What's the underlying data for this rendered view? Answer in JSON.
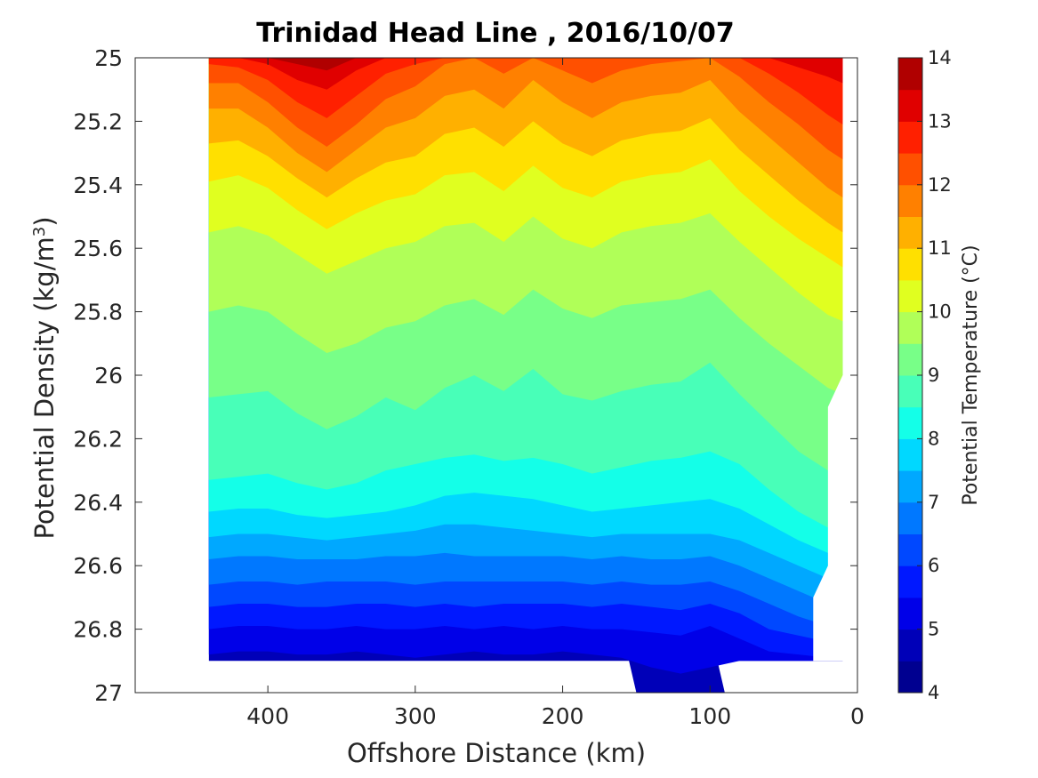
{
  "chart_data": {
    "type": "contour",
    "title": "Trinidad Head Line , 2016/10/07",
    "xlabel": "Offshore Distance (km)",
    "ylabel": "Potential Density (kg/m³)",
    "ylabel_parts": {
      "main": "Potential Density (kg/m",
      "sup": "3",
      "end": ")"
    },
    "colorbar_label": "Potential Temperature (°C)",
    "x_reversed": true,
    "y_reversed": true,
    "xlim": [
      490,
      0
    ],
    "ylim": [
      25,
      27
    ],
    "x_ticks": [
      400,
      300,
      200,
      100,
      0
    ],
    "y_ticks": [
      25,
      25.2,
      25.4,
      25.6,
      25.8,
      26,
      26.2,
      26.4,
      26.6,
      26.8,
      27
    ],
    "colorbar_ticks": [
      4,
      5,
      6,
      7,
      8,
      9,
      10,
      11,
      12,
      13,
      14
    ],
    "colorbar_range": [
      4,
      14
    ],
    "contour_levels": [
      4,
      4.5,
      5,
      5.5,
      6,
      6.5,
      7,
      7.5,
      8,
      8.5,
      9,
      9.5,
      10,
      10.5,
      11,
      11.5,
      12,
      12.5,
      13,
      13.5,
      14
    ],
    "colormap": "jet",
    "colorbar_colors": [
      "#000090",
      "#0000b8",
      "#0000e8",
      "#0018ff",
      "#0048ff",
      "#0078ff",
      "#00a8ff",
      "#00d8ff",
      "#14ffe8",
      "#48ffb8",
      "#78ff88",
      "#b0ff58",
      "#e0ff20",
      "#ffe000",
      "#ffb000",
      "#ff8000",
      "#ff5000",
      "#ff2000",
      "#e00000",
      "#b00000"
    ],
    "data_extent": {
      "x_range_km": [
        440,
        10
      ],
      "density_bottom": 26.9,
      "deep_pocket_x_km": [
        150,
        90
      ],
      "deep_pocket_density": 27
    },
    "isotherms": {
      "x_km": [
        440,
        420,
        400,
        380,
        360,
        340,
        320,
        300,
        280,
        260,
        240,
        220,
        200,
        180,
        160,
        140,
        120,
        100,
        80,
        60,
        40,
        20,
        10
      ],
      "levels": [
        {
          "t": 5,
          "y": [
            26.88,
            26.87,
            26.87,
            26.88,
            26.88,
            26.87,
            26.88,
            26.89,
            26.88,
            26.87,
            26.88,
            26.88,
            26.87,
            26.88,
            26.89,
            26.92,
            26.94,
            26.92,
            26.9,
            26.9,
            26.9,
            26.9,
            26.9
          ]
        },
        {
          "t": 5.5,
          "y": [
            26.8,
            26.79,
            26.79,
            26.8,
            26.8,
            26.79,
            26.8,
            26.8,
            26.79,
            26.8,
            26.79,
            26.8,
            26.79,
            26.8,
            26.8,
            26.81,
            26.82,
            26.79,
            26.83,
            26.87,
            26.88,
            26.89,
            26.89
          ]
        },
        {
          "t": 6,
          "y": [
            26.73,
            26.72,
            26.72,
            26.73,
            26.73,
            26.72,
            26.72,
            26.73,
            26.72,
            26.73,
            26.72,
            26.72,
            26.72,
            26.73,
            26.72,
            26.73,
            26.74,
            26.72,
            26.75,
            26.8,
            26.82,
            26.84,
            26.85
          ]
        },
        {
          "t": 6.5,
          "y": [
            26.66,
            26.65,
            26.65,
            26.66,
            26.65,
            26.65,
            26.65,
            26.66,
            26.65,
            26.65,
            26.65,
            26.65,
            26.65,
            26.66,
            26.65,
            26.66,
            26.66,
            26.65,
            26.68,
            26.72,
            26.76,
            26.79,
            26.8
          ]
        },
        {
          "t": 7,
          "y": [
            26.58,
            26.57,
            26.57,
            26.58,
            26.58,
            26.58,
            26.57,
            26.57,
            26.56,
            26.57,
            26.57,
            26.57,
            26.57,
            26.58,
            26.57,
            26.58,
            26.58,
            26.57,
            26.6,
            26.64,
            26.68,
            26.72,
            26.74
          ]
        },
        {
          "t": 7.5,
          "y": [
            26.51,
            26.5,
            26.5,
            26.51,
            26.52,
            26.51,
            26.5,
            26.49,
            26.47,
            26.47,
            26.48,
            26.49,
            26.5,
            26.51,
            26.5,
            26.5,
            26.5,
            26.5,
            26.52,
            26.56,
            26.6,
            26.64,
            26.66
          ]
        },
        {
          "t": 8,
          "y": [
            26.43,
            26.42,
            26.42,
            26.44,
            26.45,
            26.44,
            26.43,
            26.41,
            26.38,
            26.37,
            26.38,
            26.39,
            26.41,
            26.43,
            26.42,
            26.41,
            26.4,
            26.39,
            26.42,
            26.47,
            26.52,
            26.56,
            26.58
          ]
        },
        {
          "t": 8.5,
          "y": [
            26.33,
            26.32,
            26.31,
            26.34,
            26.36,
            26.34,
            26.3,
            26.28,
            26.26,
            26.25,
            26.27,
            26.26,
            26.28,
            26.31,
            26.29,
            26.27,
            26.26,
            26.24,
            26.28,
            26.36,
            26.43,
            26.48,
            26.5
          ]
        },
        {
          "t": 9,
          "y": [
            26.07,
            26.06,
            26.05,
            26.12,
            26.17,
            26.13,
            26.07,
            26.11,
            26.04,
            26.0,
            26.05,
            25.98,
            26.06,
            26.08,
            26.05,
            26.03,
            26.02,
            25.96,
            26.06,
            26.15,
            26.24,
            26.3,
            26.33
          ]
        },
        {
          "t": 9.5,
          "y": [
            25.8,
            25.78,
            25.8,
            25.87,
            25.93,
            25.9,
            25.85,
            25.83,
            25.78,
            25.76,
            25.81,
            25.73,
            25.79,
            25.82,
            25.78,
            25.77,
            25.76,
            25.73,
            25.82,
            25.9,
            25.97,
            26.04,
            26.06
          ]
        },
        {
          "t": 10,
          "y": [
            25.55,
            25.53,
            25.56,
            25.62,
            25.68,
            25.64,
            25.6,
            25.58,
            25.53,
            25.52,
            25.58,
            25.5,
            25.57,
            25.6,
            25.55,
            25.53,
            25.52,
            25.49,
            25.58,
            25.66,
            25.74,
            25.81,
            25.83
          ]
        },
        {
          "t": 10.5,
          "y": [
            25.39,
            25.37,
            25.41,
            25.48,
            25.54,
            25.49,
            25.45,
            25.43,
            25.37,
            25.36,
            25.42,
            25.34,
            25.41,
            25.44,
            25.39,
            25.37,
            25.36,
            25.32,
            25.42,
            25.5,
            25.57,
            25.63,
            25.66
          ]
        },
        {
          "t": 11,
          "y": [
            25.27,
            25.26,
            25.31,
            25.38,
            25.44,
            25.38,
            25.33,
            25.31,
            25.24,
            25.22,
            25.28,
            25.2,
            25.27,
            25.31,
            25.26,
            25.24,
            25.23,
            25.19,
            25.29,
            25.37,
            25.45,
            25.52,
            25.55
          ]
        },
        {
          "t": 11.5,
          "y": [
            25.16,
            25.16,
            25.22,
            25.3,
            25.36,
            25.29,
            25.22,
            25.19,
            25.12,
            25.1,
            25.16,
            25.07,
            25.14,
            25.19,
            25.14,
            25.12,
            25.11,
            25.07,
            25.17,
            25.25,
            25.33,
            25.41,
            25.44
          ]
        },
        {
          "t": 12,
          "y": [
            25.08,
            25.08,
            25.14,
            25.22,
            25.28,
            25.21,
            25.13,
            25.09,
            25.02,
            25.0,
            25.05,
            25.0,
            25.04,
            25.08,
            25.04,
            25.02,
            25.01,
            25.0,
            25.06,
            25.14,
            25.21,
            25.29,
            25.32
          ]
        },
        {
          "t": 12.5,
          "y": [
            25.02,
            25.03,
            25.07,
            25.14,
            25.19,
            25.12,
            25.05,
            25.02,
            25.0,
            25.0,
            25.0,
            25.0,
            25.0,
            25.0,
            25.0,
            25.0,
            25.0,
            25.0,
            25.0,
            25.05,
            25.11,
            25.18,
            25.21
          ]
        },
        {
          "t": 13,
          "y": [
            25.0,
            25.0,
            25.02,
            25.07,
            25.1,
            25.04,
            25.0,
            25.0,
            25.0,
            25.0,
            25.0,
            25.0,
            25.0,
            25.0,
            25.0,
            25.0,
            25.0,
            25.0,
            25.0,
            25.0,
            25.03,
            25.06,
            25.08
          ]
        },
        {
          "t": 13.5,
          "y": [
            25.0,
            25.0,
            25.0,
            25.02,
            25.04,
            25.0,
            25.0,
            25.0,
            25.0,
            25.0,
            25.0,
            25.0,
            25.0,
            25.0,
            25.0,
            25.0,
            25.0,
            25.0,
            25.0,
            25.0,
            25.0,
            25.0,
            25.0
          ]
        }
      ]
    }
  }
}
